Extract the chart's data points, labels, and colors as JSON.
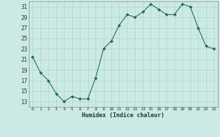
{
  "x": [
    0,
    1,
    2,
    3,
    4,
    5,
    6,
    7,
    8,
    9,
    10,
    11,
    12,
    13,
    14,
    15,
    16,
    17,
    18,
    19,
    20,
    21,
    22,
    23
  ],
  "y": [
    21.5,
    18.5,
    17.0,
    14.5,
    13.0,
    14.0,
    13.5,
    13.5,
    17.5,
    23.0,
    24.5,
    27.5,
    29.5,
    29.0,
    30.0,
    31.5,
    30.5,
    29.5,
    29.5,
    31.5,
    31.0,
    27.0,
    23.5,
    23.0
  ],
  "line_color": "#1a6b5a",
  "marker_color": "#1a6b5a",
  "bg_color": "#cce9e5",
  "grid_color": "#aad4cf",
  "xlabel": "Humidex (Indice chaleur)",
  "ylim": [
    12,
    32
  ],
  "yticks": [
    13,
    15,
    17,
    19,
    21,
    23,
    25,
    27,
    29,
    31
  ],
  "xlim": [
    -0.5,
    23.5
  ],
  "xtick_labels": [
    "0",
    "1",
    "2",
    "3",
    "4",
    "5",
    "6",
    "7",
    "8",
    "9",
    "10",
    "11",
    "12",
    "13",
    "14",
    "15",
    "16",
    "17",
    "18",
    "19",
    "20",
    "21",
    "22",
    "23"
  ]
}
